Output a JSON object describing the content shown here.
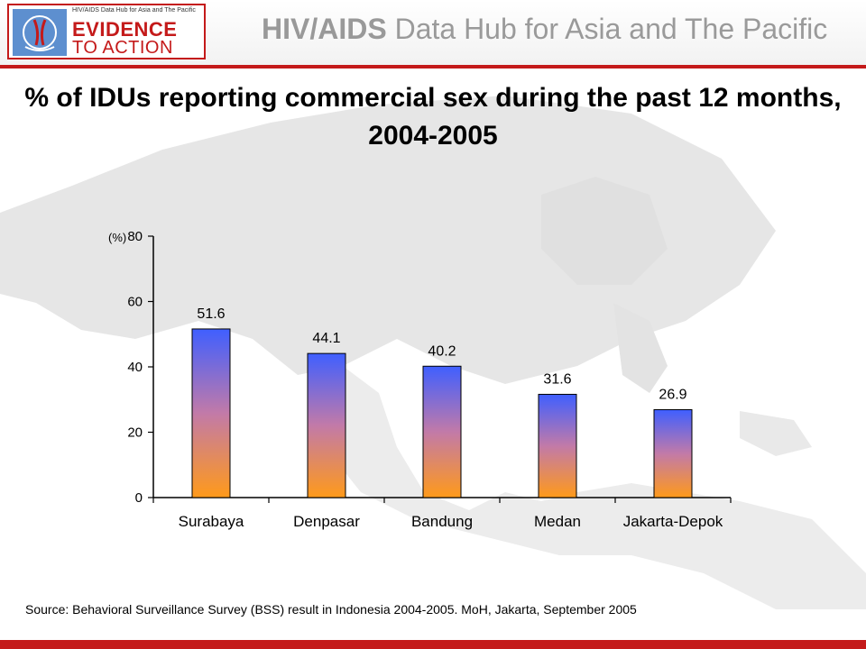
{
  "header": {
    "logo_small_text": "HIV/AIDS Data Hub for Asia and The Pacific",
    "logo_line1": "EVIDENCE",
    "logo_line2": "TO ACTION",
    "hub_title_bold": "HIV/AIDS",
    "hub_title_rest": " Data Hub for Asia and The Pacific"
  },
  "title": "% of IDUs reporting commercial sex during the past 12 months, 2004-2005",
  "chart_data": {
    "type": "bar",
    "categories": [
      "Surabaya",
      "Denpasar",
      "Bandung",
      "Medan",
      "Jakarta-Depok"
    ],
    "values": [
      51.6,
      44.1,
      40.2,
      31.6,
      26.9
    ],
    "value_labels": [
      "51.6",
      "44.1",
      "40.2",
      "31.6",
      "26.9"
    ],
    "ylabel": "(%)",
    "ylim": [
      0,
      80
    ],
    "yticks": [
      0,
      20,
      40,
      60,
      80
    ],
    "grid": false,
    "bar_gradient": {
      "top": "#3f5fff",
      "bottom": "#ff9a1a"
    }
  },
  "source": "Source: Behavioral Surveillance Survey (BSS) result in Indonesia 2004-2005. MoH, Jakarta, September 2005",
  "colors": {
    "brand_red": "#c41a1a",
    "hub_gray": "#9a9a9a"
  }
}
